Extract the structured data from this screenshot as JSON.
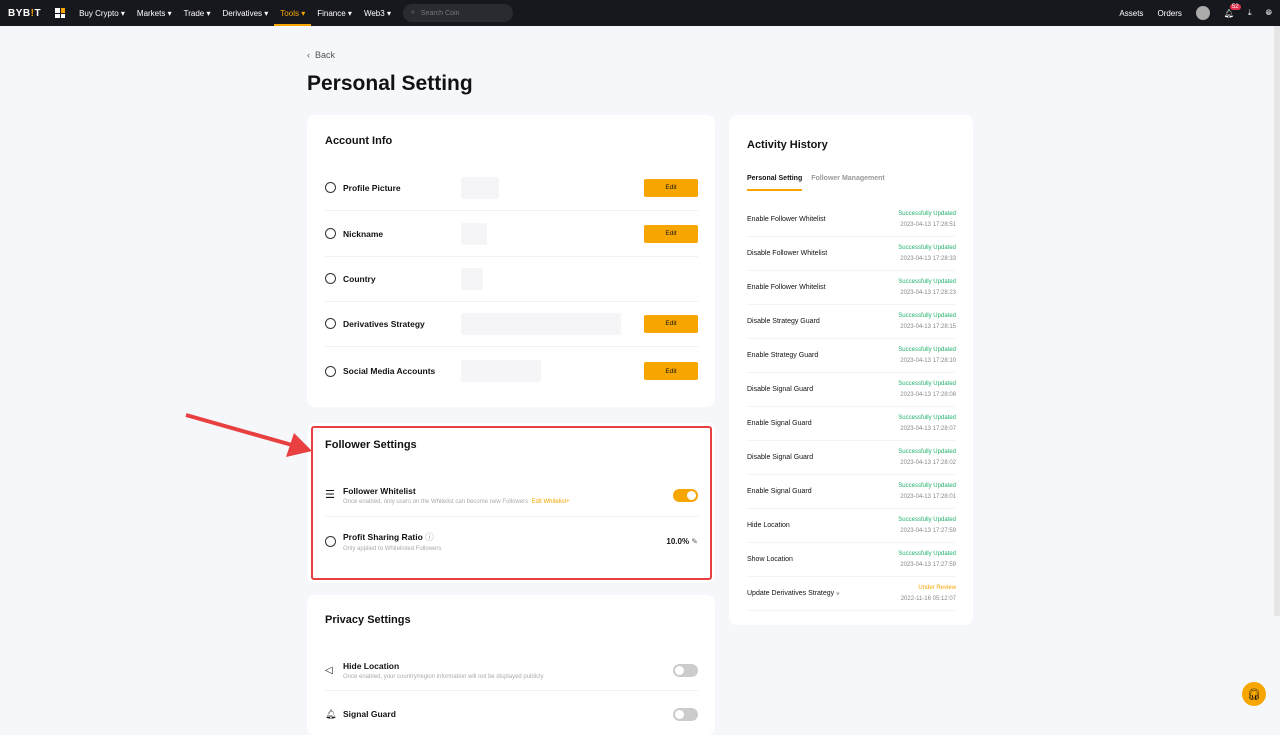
{
  "nav": {
    "logo": "BYB!T",
    "items": [
      "Buy Crypto",
      "Markets",
      "Trade",
      "Derivatives",
      "Tools",
      "Finance",
      "Web3"
    ],
    "active": "Tools",
    "search_placeholder": "Search Coin",
    "assets": "Assets",
    "orders": "Orders",
    "notifications": "52"
  },
  "back": "Back",
  "title": "Personal Setting",
  "account": {
    "title": "Account Info",
    "rows": [
      {
        "label": "Profile Picture",
        "edit": "Edit"
      },
      {
        "label": "Nickname",
        "edit": "Edit"
      },
      {
        "label": "Country"
      },
      {
        "label": "Derivatives Strategy",
        "edit": "Edit"
      },
      {
        "label": "Social Media Accounts",
        "edit": "Edit"
      }
    ]
  },
  "follower": {
    "title": "Follower Settings",
    "whitelist": {
      "label": "Follower Whitelist",
      "desc": "Once enabled, only users on the Whitelist can become new Followers",
      "link": "Edit Whitelist+",
      "enabled": true
    },
    "profit": {
      "label": "Profit Sharing Ratio",
      "desc": "Only applied to Whitelisted Followers",
      "value": "10.0%"
    }
  },
  "privacy": {
    "title": "Privacy Settings",
    "hide_location": {
      "label": "Hide Location",
      "desc": "Once enabled, your country/region information will not be displayed publicly",
      "enabled": false
    },
    "signal_guard": {
      "label": "Signal Guard",
      "enabled": false
    }
  },
  "history": {
    "title": "Activity History",
    "tabs": [
      "Personal Setting",
      "Follower Management"
    ],
    "items": [
      {
        "action": "Enable Follower Whitelist",
        "status": "Successfully Updated",
        "time": "2023-04-13 17:28:51"
      },
      {
        "action": "Disable Follower Whitelist",
        "status": "Successfully Updated",
        "time": "2023-04-13 17:28:33"
      },
      {
        "action": "Enable Follower Whitelist",
        "status": "Successfully Updated",
        "time": "2023-04-13 17:28:23"
      },
      {
        "action": "Disable Strategy Guard",
        "status": "Successfully Updated",
        "time": "2023-04-13 17:28:15"
      },
      {
        "action": "Enable Strategy Guard",
        "status": "Successfully Updated",
        "time": "2023-04-13 17:28:10"
      },
      {
        "action": "Disable Signal Guard",
        "status": "Successfully Updated",
        "time": "2023-04-13 17:28:08"
      },
      {
        "action": "Enable Signal Guard",
        "status": "Successfully Updated",
        "time": "2023-04-13 17:28:07"
      },
      {
        "action": "Disable Signal Guard",
        "status": "Successfully Updated",
        "time": "2023-04-13 17:28:02"
      },
      {
        "action": "Enable Signal Guard",
        "status": "Successfully Updated",
        "time": "2023-04-13 17:28:01"
      },
      {
        "action": "Hide Location",
        "status": "Successfully Updated",
        "time": "2023-04-13 17:27:59"
      },
      {
        "action": "Show Location",
        "status": "Successfully Updated",
        "time": "2023-04-13 17:27:59"
      },
      {
        "action": "Update Derivatives Strategy",
        "status": "Under Review",
        "time": "2022-11-16 05:12:07"
      }
    ]
  },
  "colors": {
    "accent": "#f7a600",
    "success": "#20b26c",
    "highlight": "#e84040"
  }
}
